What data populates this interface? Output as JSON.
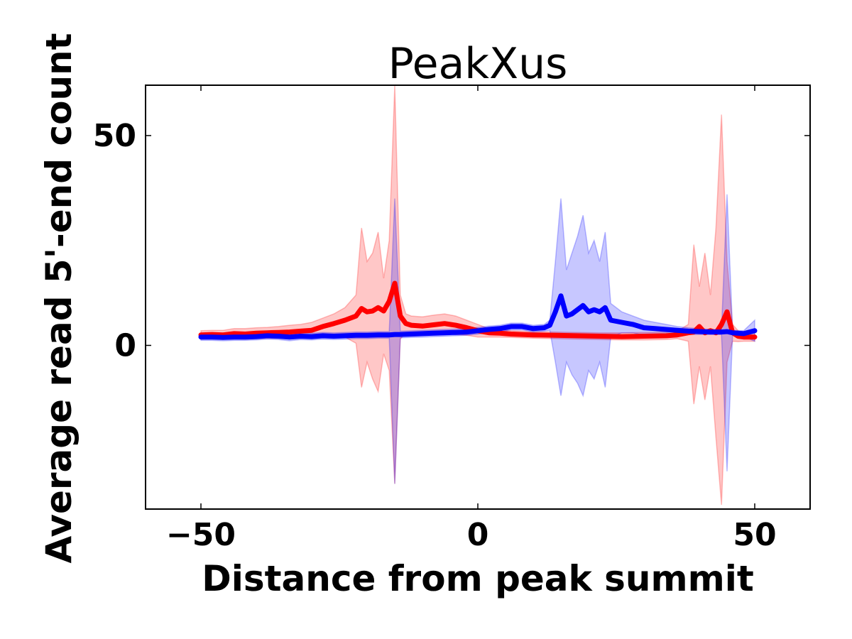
{
  "chart_data": {
    "type": "line",
    "title": "PeakXus",
    "xlabel": "Distance from peak summit",
    "ylabel": "Average read 5'-end count",
    "xlim": [
      -60,
      60
    ],
    "ylim": [
      -39,
      62
    ],
    "xticks": [
      -50,
      0,
      50
    ],
    "xtick_labels": [
      "−50",
      "0",
      "50"
    ],
    "yticks": [
      0,
      50
    ],
    "ytick_labels": [
      "0",
      "50"
    ],
    "grid": false,
    "legend": "none",
    "series": [
      {
        "color": "#ff0000",
        "band_color": "#ff0000",
        "x": [
          -50,
          -48,
          -46,
          -44,
          -42,
          -40,
          -38,
          -36,
          -34,
          -32,
          -30,
          -28,
          -26,
          -24,
          -22,
          -21,
          -20,
          -19,
          -18,
          -17,
          -16,
          -15,
          -14,
          -13,
          -12,
          -10,
          -8,
          -6,
          -4,
          -2,
          0,
          2,
          4,
          6,
          8,
          10,
          14,
          18,
          22,
          26,
          30,
          34,
          36,
          38,
          39,
          40,
          41,
          42,
          43,
          44,
          45,
          46,
          47,
          48,
          50
        ],
        "mean": [
          2.5,
          2.6,
          2.5,
          2.8,
          2.7,
          2.9,
          3.0,
          3.1,
          3.2,
          3.4,
          3.6,
          4.5,
          5.2,
          6.0,
          7.0,
          8.8,
          8.0,
          8.2,
          9.0,
          8.2,
          10.5,
          14.8,
          7.0,
          5.2,
          4.8,
          4.6,
          4.9,
          5.2,
          4.8,
          4.2,
          3.5,
          3.0,
          2.9,
          2.7,
          2.6,
          2.5,
          2.4,
          2.3,
          2.2,
          2.1,
          2.2,
          2.3,
          2.5,
          3.0,
          3.2,
          4.5,
          3.0,
          3.5,
          3.0,
          5.0,
          8.0,
          3.0,
          2.2,
          2.0,
          2.0
        ],
        "upper": [
          3.5,
          3.6,
          3.6,
          4.0,
          4.0,
          4.2,
          4.3,
          4.5,
          4.8,
          5.0,
          5.5,
          6.5,
          7.5,
          9.0,
          12.0,
          28.0,
          20.0,
          22.0,
          27.0,
          16.0,
          25.0,
          62.0,
          12.0,
          7.5,
          7.0,
          6.8,
          7.2,
          7.5,
          7.0,
          6.0,
          5.0,
          4.0,
          3.8,
          3.5,
          3.4,
          3.3,
          3.2,
          3.1,
          3.0,
          3.0,
          3.1,
          3.2,
          3.4,
          5.0,
          24.0,
          14.0,
          22.0,
          12.0,
          28.0,
          55.0,
          20.0,
          5.0,
          3.5,
          3.0,
          3.0
        ],
        "lower": [
          1.5,
          1.6,
          1.5,
          1.6,
          1.5,
          1.6,
          1.7,
          1.7,
          1.6,
          1.8,
          1.7,
          2.5,
          2.5,
          2.0,
          0.5,
          -10.0,
          -4.0,
          -8.0,
          -11.0,
          -2.0,
          -6.0,
          -33.0,
          1.5,
          3.0,
          2.6,
          2.4,
          2.6,
          2.9,
          2.6,
          2.4,
          2.0,
          2.0,
          2.0,
          1.9,
          1.8,
          1.7,
          1.6,
          1.5,
          1.4,
          1.3,
          1.3,
          1.4,
          1.6,
          1.0,
          -14.0,
          -5.0,
          -13.0,
          -5.0,
          -22.0,
          -38.0,
          -4.0,
          1.0,
          0.9,
          1.0,
          1.0
        ]
      },
      {
        "color": "#0000ff",
        "band_color": "#0000ff",
        "x": [
          -50,
          -48,
          -46,
          -44,
          -42,
          -40,
          -38,
          -36,
          -34,
          -32,
          -30,
          -28,
          -26,
          -24,
          -22,
          -20,
          -18,
          -16,
          -15,
          -14,
          -12,
          -10,
          -8,
          -6,
          -4,
          -2,
          0,
          2,
          4,
          6,
          8,
          10,
          12,
          13,
          14,
          15,
          16,
          17,
          18,
          19,
          20,
          21,
          22,
          23,
          24,
          26,
          28,
          30,
          32,
          34,
          36,
          38,
          40,
          42,
          44,
          45,
          46,
          48,
          50
        ],
        "mean": [
          2.0,
          2.0,
          1.9,
          2.0,
          2.0,
          2.1,
          2.3,
          2.2,
          2.0,
          2.2,
          2.1,
          2.3,
          2.2,
          2.3,
          2.4,
          2.4,
          2.5,
          2.5,
          2.6,
          2.6,
          2.7,
          2.8,
          2.9,
          3.0,
          3.1,
          3.2,
          3.5,
          3.8,
          4.0,
          4.5,
          4.5,
          4.0,
          4.2,
          4.8,
          8.0,
          11.8,
          7.0,
          7.5,
          8.5,
          9.5,
          8.0,
          8.5,
          8.0,
          9.0,
          6.0,
          5.5,
          5.0,
          4.2,
          4.0,
          3.8,
          3.6,
          3.4,
          3.3,
          3.2,
          3.2,
          3.3,
          3.0,
          2.8,
          3.5
        ],
        "upper": [
          2.8,
          2.8,
          2.7,
          2.8,
          2.8,
          2.9,
          3.1,
          3.0,
          2.9,
          3.0,
          2.9,
          3.1,
          3.0,
          3.1,
          3.2,
          3.2,
          3.3,
          3.3,
          35.0,
          3.4,
          3.5,
          3.6,
          3.7,
          3.8,
          3.9,
          4.0,
          4.3,
          4.6,
          4.8,
          5.3,
          5.3,
          4.8,
          5.0,
          6.0,
          20.0,
          35.0,
          18.0,
          22.0,
          26.0,
          31.0,
          22.0,
          25.0,
          20.0,
          27.0,
          10.0,
          8.0,
          7.0,
          6.0,
          5.5,
          5.0,
          4.5,
          4.2,
          4.0,
          3.8,
          3.8,
          36.0,
          3.6,
          3.5,
          6.0
        ],
        "lower": [
          1.2,
          1.2,
          1.1,
          1.2,
          1.2,
          1.3,
          1.5,
          1.4,
          1.1,
          1.4,
          1.3,
          1.5,
          1.4,
          1.5,
          1.6,
          1.6,
          1.7,
          1.7,
          -33.0,
          1.8,
          1.9,
          2.0,
          2.1,
          2.2,
          2.3,
          2.4,
          2.7,
          3.0,
          3.2,
          3.7,
          3.7,
          3.2,
          3.4,
          3.6,
          -4.0,
          -12.0,
          -4.0,
          -7.0,
          -9.0,
          -12.0,
          -6.0,
          -8.0,
          -4.0,
          -10.0,
          2.0,
          3.0,
          3.0,
          2.4,
          2.5,
          2.6,
          2.7,
          2.6,
          2.6,
          2.6,
          2.6,
          -30.0,
          2.4,
          2.1,
          1.0
        ]
      }
    ]
  }
}
